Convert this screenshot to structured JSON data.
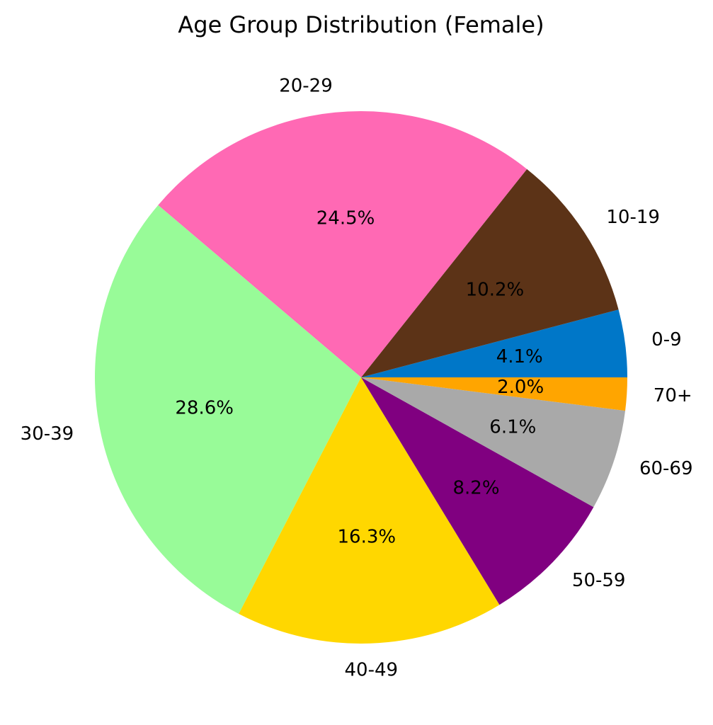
{
  "chart_data": {
    "type": "pie",
    "title": "Age Group Distribution (Female)",
    "start_angle_deg": 0,
    "direction": "counterclockwise",
    "slices": [
      {
        "label": "0-9",
        "value": 4.1,
        "pct_label": "4.1%",
        "color": "#0077c8"
      },
      {
        "label": "10-19",
        "value": 10.2,
        "pct_label": "10.2%",
        "color": "#5c3317"
      },
      {
        "label": "20-29",
        "value": 24.5,
        "pct_label": "24.5%",
        "color": "#ff69b4"
      },
      {
        "label": "30-39",
        "value": 28.6,
        "pct_label": "28.6%",
        "color": "#98fb98"
      },
      {
        "label": "40-49",
        "value": 16.3,
        "pct_label": "16.3%",
        "color": "#ffd700"
      },
      {
        "label": "50-59",
        "value": 8.2,
        "pct_label": "8.2%",
        "color": "#800080"
      },
      {
        "label": "60-69",
        "value": 6.1,
        "pct_label": "6.1%",
        "color": "#a9a9a9"
      },
      {
        "label": "70+",
        "value": 2.0,
        "pct_label": "2.0%",
        "color": "#ffa500"
      }
    ]
  }
}
